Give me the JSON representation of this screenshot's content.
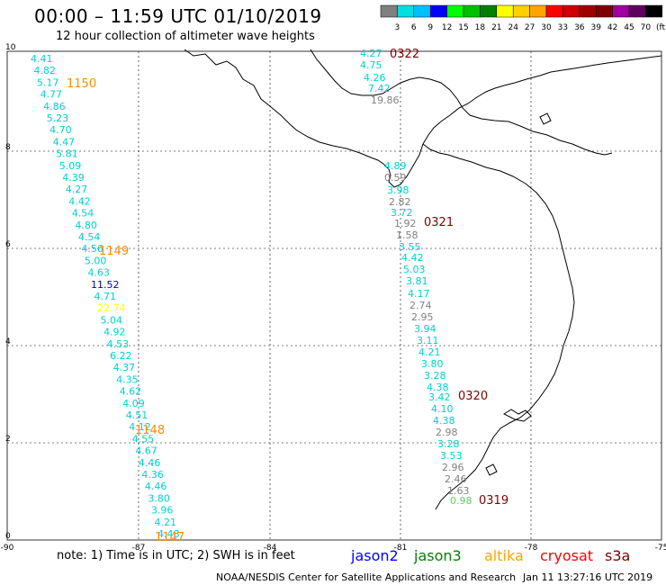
{
  "title": "00:00 – 11:59 UTC 01/10/2019",
  "subtitle": "12 hour collection of altimeter wave heights",
  "colorbar": {
    "labels": [
      "3",
      "6",
      "9",
      "12",
      "15",
      "18",
      "21",
      "24",
      "27",
      "30",
      "33",
      "36",
      "39",
      "42",
      "45",
      "70",
      "(ft)"
    ],
    "colors": [
      "#808080",
      "#00e0e0",
      "#00bfff",
      "#0000ff",
      "#00ff00",
      "#00c000",
      "#008000",
      "#ffff00",
      "#ffd000",
      "#ffa500",
      "#ff0000",
      "#d00000",
      "#a00000",
      "#800000",
      "#a000a0",
      "#600060",
      "#000000"
    ]
  },
  "axes": {
    "x_ticks": [
      "-90",
      "-87",
      "-84",
      "-81",
      "-78",
      "-75"
    ],
    "y_ticks": [
      "0",
      "2",
      "4",
      "6",
      "8",
      "10"
    ]
  },
  "passes": [
    {
      "id": "1150",
      "color": "#ff8c00"
    },
    {
      "id": "1149",
      "color": "#ff8c00"
    },
    {
      "id": "1148",
      "color": "#ff8c00"
    },
    {
      "id": "1147",
      "color": "#ff8c00"
    },
    {
      "id": "0322",
      "color": "#800000"
    },
    {
      "id": "0321",
      "color": "#800000"
    },
    {
      "id": "0320",
      "color": "#800000"
    },
    {
      "id": "0319",
      "color": "#800000"
    }
  ],
  "track_west": {
    "values": [
      "4.41",
      "4.82",
      "5.17",
      "4.77",
      "4.86",
      "5.23",
      "4.70",
      "4.47",
      "5.81",
      "5.09",
      "4.39",
      "4.27",
      "4.42",
      "4.54",
      "4.80",
      "4.54",
      "4.56",
      "5.00",
      "4.63",
      "11.52",
      "4.71",
      "22.74",
      "5.04",
      "4.92",
      "4.53",
      "6.22",
      "4.37",
      "4.35",
      "4.62",
      "4.09",
      "4.51",
      "4.12",
      "4.55",
      "4.67",
      "4.46",
      "4.36",
      "4.46",
      "3.80",
      "3.96",
      "4.21",
      "4.48"
    ],
    "colors": [
      "c",
      "c",
      "c",
      "c",
      "c",
      "c",
      "c",
      "c",
      "c",
      "c",
      "c",
      "c",
      "c",
      "c",
      "c",
      "c",
      "c",
      "c",
      "c",
      "b",
      "c",
      "y",
      "c",
      "c",
      "c",
      "c",
      "c",
      "c",
      "c",
      "c",
      "c",
      "c",
      "c",
      "c",
      "c",
      "c",
      "c",
      "c",
      "c",
      "c",
      "c"
    ]
  },
  "track_east": {
    "values": [
      "4.27",
      "4.75",
      "4.26",
      "7.42",
      "19.86",
      "4.89",
      "0.59",
      "3.98",
      "2.82",
      "3.72",
      "1.92",
      "1.58",
      "3.55",
      "4.42",
      "5.03",
      "3.81",
      "4.17",
      "2.74",
      "2.95",
      "3.94",
      "3.11",
      "4.21",
      "3.80",
      "3.28",
      "4.38",
      "3.42",
      "4.10",
      "4.38",
      "2.98",
      "3.28",
      "3.53",
      "2.96",
      "2.46",
      "1.63",
      "0.98"
    ],
    "colors": [
      "c",
      "c",
      "c",
      "c",
      "g",
      "c",
      "g",
      "c",
      "g",
      "c",
      "g",
      "g",
      "c",
      "c",
      "c",
      "c",
      "c",
      "g",
      "g",
      "c",
      "c",
      "c",
      "c",
      "c",
      "c",
      "c",
      "c",
      "c",
      "g",
      "c",
      "c",
      "g",
      "g",
      "g",
      "lg"
    ]
  },
  "note": "note: 1) Time is in UTC; 2) SWH is in feet",
  "satellites": [
    {
      "name": "jason2",
      "color": "#0000ff"
    },
    {
      "name": "jason3",
      "color": "#008000"
    },
    {
      "name": "altika",
      "color": "#ffa500"
    },
    {
      "name": "cryosat",
      "color": "#ff0000"
    },
    {
      "name": "s3a",
      "color": "#800000"
    }
  ],
  "footer_org": "NOAA/NESDIS Center for Satellite Applications and Research",
  "footer_time": "Jan 11 13:27:16 UTC 2019"
}
